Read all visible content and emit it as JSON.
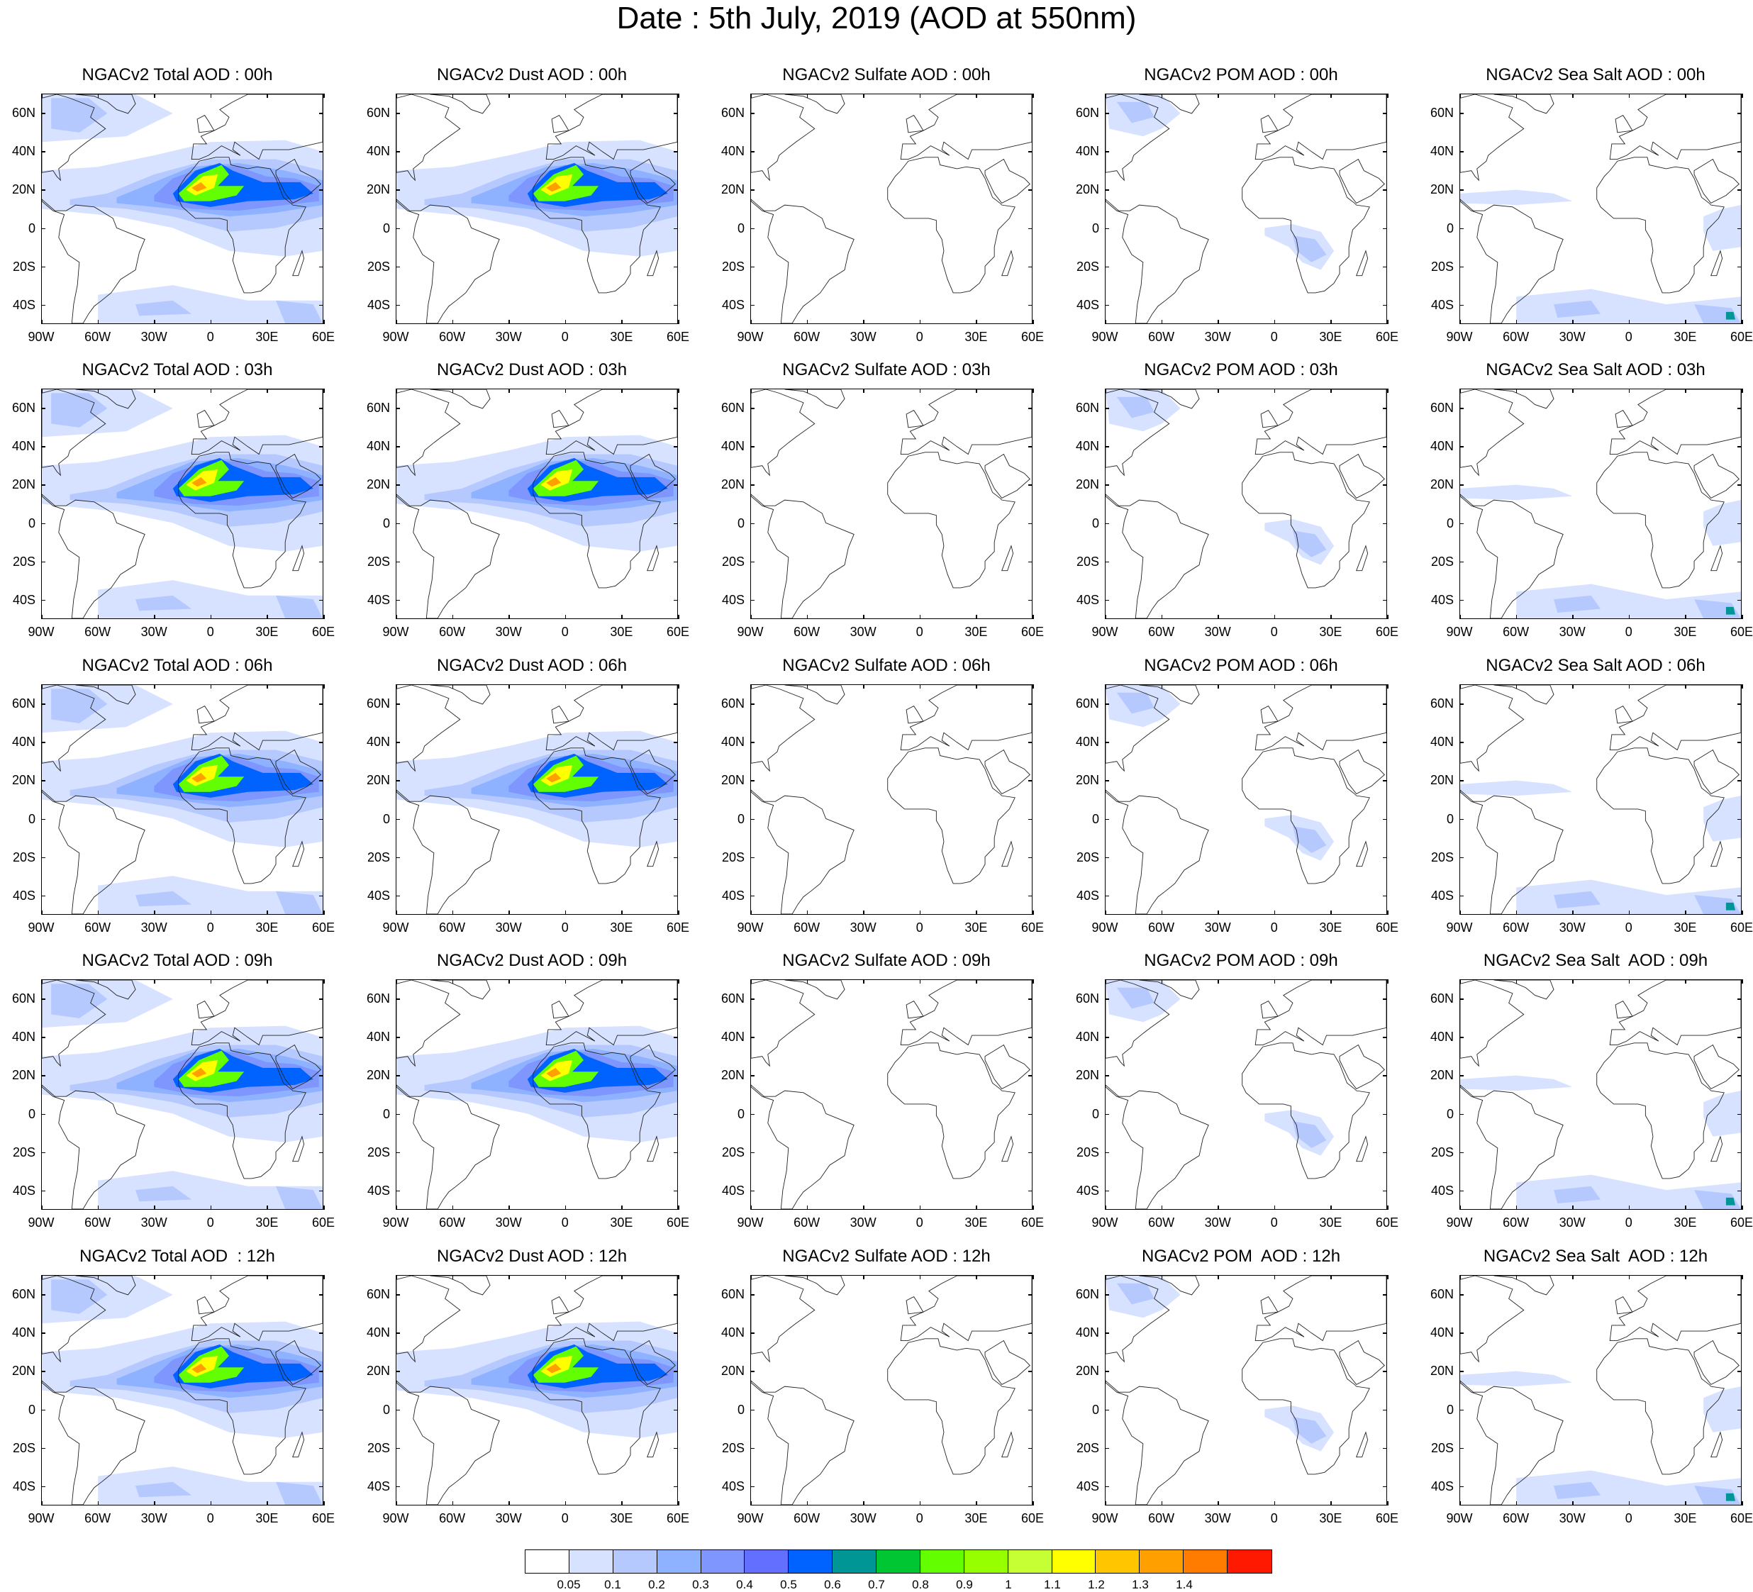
{
  "title": "Date : 5th July, 2019 (AOD at 550nm)",
  "lat_ticks": [
    "60N",
    "40N",
    "20N",
    "0",
    "20S",
    "40S"
  ],
  "lat_values": [
    60,
    40,
    20,
    0,
    -20,
    -40
  ],
  "lon_ticks": [
    "90W",
    "60W",
    "30W",
    "0",
    "30E",
    "60E"
  ],
  "lon_values": [
    -90,
    -60,
    -30,
    0,
    30,
    60
  ],
  "map_extent": {
    "lon_min": -90,
    "lon_max": 60,
    "lat_min": -50,
    "lat_max": 70
  },
  "panels": [
    [
      "NGACv2 Total AOD : 00h",
      "NGACv2 Dust AOD : 00h",
      "NGACv2 Sulfate AOD : 00h",
      "NGACv2 POM AOD : 00h",
      "NGACv2 Sea Salt AOD : 00h"
    ],
    [
      "NGACv2 Total AOD : 03h",
      "NGACv2 Dust AOD : 03h",
      "NGACv2 Sulfate AOD : 03h",
      "NGACv2 POM AOD : 03h",
      "NGACv2 Sea Salt AOD : 03h"
    ],
    [
      "NGACv2 Total AOD : 06h",
      "NGACv2 Dust AOD : 06h",
      "NGACv2 Sulfate AOD : 06h",
      "NGACv2 POM AOD : 06h",
      "NGACv2 Sea Salt AOD : 06h"
    ],
    [
      "NGACv2 Total AOD : 09h",
      "NGACv2 Dust AOD : 09h",
      "NGACv2 Sulfate AOD : 09h",
      "NGACv2 POM AOD : 09h",
      "NGACv2 Sea Salt  AOD : 09h"
    ],
    [
      "NGACv2 Total AOD  : 12h",
      "NGACv2 Dust AOD : 12h",
      "NGACv2 Sulfate AOD : 12h",
      "NGACv2 POM  AOD : 12h",
      "NGACv2 Sea Salt  AOD : 12h"
    ]
  ],
  "panel_kinds": [
    "total",
    "dust",
    "sulfate",
    "pom",
    "seasalt"
  ],
  "colorbar": {
    "labels": [
      "0.05",
      "0.1",
      "0.2",
      "0.3",
      "0.4",
      "0.5",
      "0.6",
      "0.7",
      "0.8",
      "0.9",
      "1",
      "1.1",
      "1.2",
      "1.3",
      "1.4"
    ],
    "colors": [
      "#ffffff",
      "#d6e2ff",
      "#b5c9ff",
      "#8eb2ff",
      "#7f96ff",
      "#6370ff",
      "#0063ff",
      "#009696",
      "#00c633",
      "#63ff00",
      "#96ff00",
      "#c6ff33",
      "#ffff00",
      "#ffc600",
      "#ffa000",
      "#ff7c00",
      "#ff1900"
    ]
  }
}
